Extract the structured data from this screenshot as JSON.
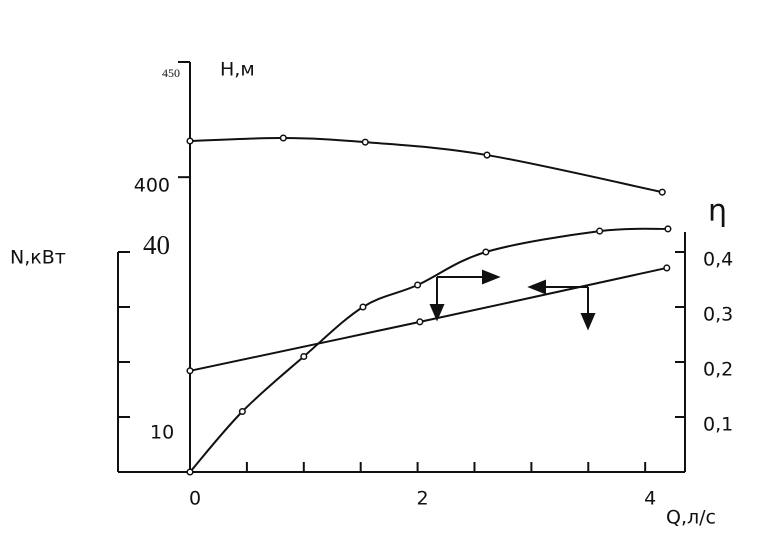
{
  "chart_data": {
    "type": "line",
    "xlabel": "Q,л/с",
    "ylabel": "H,м",
    "y2label": "η",
    "y3label": "N,кВт",
    "xlim": [
      0,
      4.35
    ],
    "xticks": [
      0,
      2,
      4
    ],
    "x_minor_ticks": [
      0.5,
      1,
      1.5,
      2.5,
      3,
      3.5
    ],
    "ylim": [
      272,
      450
    ],
    "yticks": [
      400,
      450
    ],
    "y2lim": [
      0,
      0.45
    ],
    "y2ticks": [
      {
        "value": 0.1,
        "label": "0,1"
      },
      {
        "value": 0.2,
        "label": "0,2"
      },
      {
        "value": 0.3,
        "label": "0,3"
      },
      {
        "value": 0.4,
        "label": "0,4"
      }
    ],
    "y3lim": [
      0,
      40
    ],
    "y3ticks": [
      10,
      40
    ],
    "y3_minor_ticks": [
      0,
      20,
      30
    ],
    "series": [
      {
        "axis": "y",
        "color": "#111111",
        "x": [
          0,
          0.82,
          1.54,
          2.61,
          4.15
        ],
        "values": [
          415.7,
          417,
          415.2,
          409.6,
          393.5
        ]
      },
      {
        "axis": "y3",
        "color": "#111111",
        "x": [
          0,
          2.02,
          4.19
        ],
        "values": [
          18.4,
          27.3,
          37.1
        ]
      },
      {
        "axis": "y2",
        "color": "#111111",
        "x": [
          0,
          0.46,
          1.0,
          1.52,
          2.0,
          2.6,
          3.6,
          4.2
        ],
        "values": [
          0,
          0.11,
          0.21,
          0.3,
          0.34,
          0.4,
          0.438,
          0.442
        ]
      }
    ]
  }
}
